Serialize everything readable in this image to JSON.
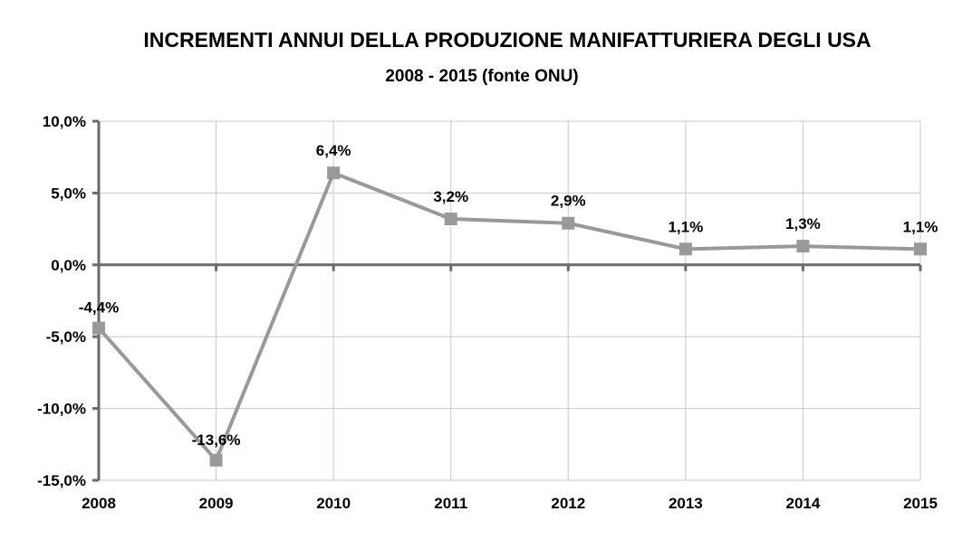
{
  "chart_data": {
    "type": "line",
    "title": "INCREMENTI ANNUI DELLA PRODUZIONE MANIFATTURIERA DEGLI USA",
    "subtitle": "2008 - 2015 (fonte ONU)",
    "xlabel": "",
    "ylabel": "",
    "categories": [
      "2008",
      "2009",
      "2010",
      "2011",
      "2012",
      "2013",
      "2014",
      "2015"
    ],
    "series": [
      {
        "values": [
          -4.4,
          -13.6,
          6.4,
          3.2,
          2.9,
          1.1,
          1.3,
          1.1
        ],
        "data_labels": [
          "-4,4%",
          "-13,6%",
          "6,4%",
          "3,2%",
          "2,9%",
          "1,1%",
          "1,3%",
          "1,1%"
        ],
        "color": "#999999",
        "marker": "square"
      }
    ],
    "ylim": [
      -15,
      10
    ],
    "y_ticks": [
      10,
      5,
      0,
      -5,
      -10,
      -15
    ],
    "y_tick_labels": [
      "10,0%",
      "5,0%",
      "0,0%",
      "-5,0%",
      "-10,0%",
      "-15,0%"
    ],
    "grid": true,
    "legend": "none"
  }
}
